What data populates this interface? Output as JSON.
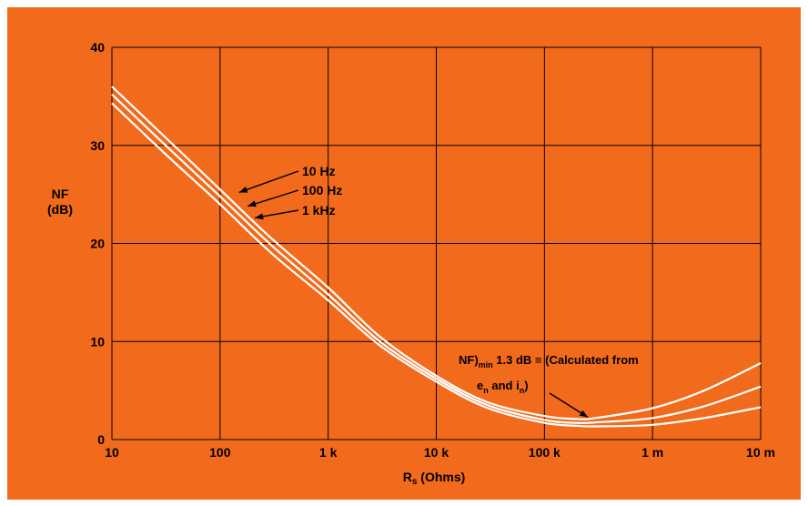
{
  "colors": {
    "background": "#f26a1b",
    "grid": "#000000",
    "curve": "#ffffff"
  },
  "chart_data": {
    "type": "line",
    "xscale": "log",
    "xlabel": "Rs (Ohms)",
    "xlabel_main": "R",
    "xlabel_sub": "s",
    "xlabel_rest": " (Ohms)",
    "ylabel": [
      "NF",
      "(dB)"
    ],
    "xlim": [
      10,
      10000000
    ],
    "ylim": [
      0,
      40
    ],
    "grid": true,
    "x_ticks": [
      {
        "value": 10,
        "label": "10"
      },
      {
        "value": 100,
        "label": "100"
      },
      {
        "value": 1000,
        "label": "1 k"
      },
      {
        "value": 10000,
        "label": "10 k"
      },
      {
        "value": 100000,
        "label": "100 k"
      },
      {
        "value": 1000000,
        "label": "1 m"
      },
      {
        "value": 10000000,
        "label": "10 m"
      }
    ],
    "y_ticks": [
      0,
      10,
      20,
      30,
      40
    ],
    "series": [
      {
        "name": "10 Hz",
        "x": [
          10,
          30,
          100,
          300,
          1000,
          3000,
          10000,
          30000,
          100000,
          200000,
          300000,
          1000000,
          3000000,
          10000000
        ],
        "y": [
          36,
          31,
          25.5,
          20.5,
          15.5,
          10.5,
          6.5,
          3.8,
          2.4,
          2.1,
          2.2,
          3.2,
          5,
          7.8
        ]
      },
      {
        "name": "100 Hz",
        "x": [
          10,
          30,
          100,
          300,
          1000,
          3000,
          10000,
          30000,
          100000,
          200000,
          300000,
          1000000,
          3000000,
          10000000
        ],
        "y": [
          35.2,
          30.2,
          24.8,
          19.8,
          14.8,
          10,
          6.2,
          3.5,
          2,
          1.7,
          1.75,
          2.2,
          3.4,
          5.4
        ]
      },
      {
        "name": "1 kHz",
        "x": [
          10,
          30,
          100,
          300,
          1000,
          3000,
          10000,
          30000,
          100000,
          200000,
          300000,
          1000000,
          3000000,
          10000000
        ],
        "y": [
          34.3,
          29.3,
          24,
          19,
          14.2,
          9.6,
          5.9,
          3.2,
          1.7,
          1.4,
          1.35,
          1.5,
          2.2,
          3.3
        ]
      }
    ],
    "series_labels": [
      {
        "text": "10 Hz",
        "at_x": 150,
        "at_y": 25.2
      },
      {
        "text": "100 Hz",
        "at_x": 180,
        "at_y": 23.8
      },
      {
        "text": "1 kHz",
        "at_x": 210,
        "at_y": 22.6
      }
    ],
    "annotation": {
      "line1_pre": "NF)",
      "line1_sub": "min",
      "line1_post": "  1.3 dB ≡ (Calculated from",
      "line2_a": "e",
      "line2_a_sub": "n",
      "line2_b": " and i",
      "line2_b_sub": "n",
      "line2_c": ")",
      "points_to_x": 200000,
      "points_to_y": 2.0
    }
  }
}
